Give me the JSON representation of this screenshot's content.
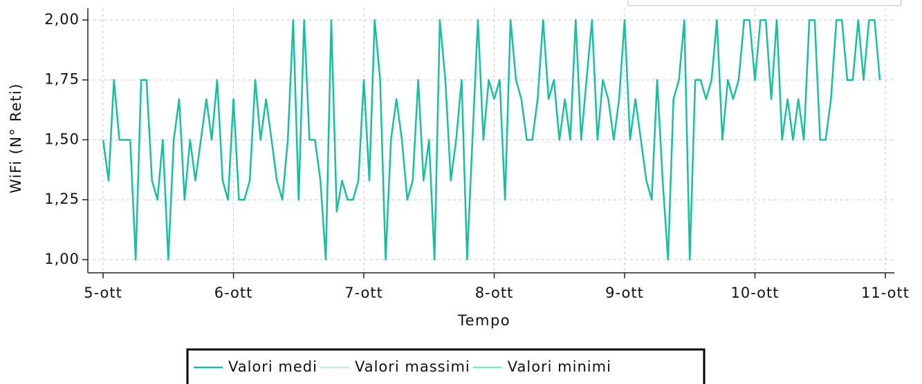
{
  "chart_data": {
    "type": "line",
    "x_label": "Tempo",
    "y_label": "WiFi (N° Reti)",
    "x": [
      5,
      5.042,
      5.083,
      5.125,
      5.167,
      5.208,
      5.25,
      5.292,
      5.333,
      5.375,
      5.417,
      5.458,
      5.5,
      5.542,
      5.583,
      5.625,
      5.667,
      5.708,
      5.75,
      5.792,
      5.833,
      5.875,
      5.917,
      5.958,
      6,
      6.042,
      6.083,
      6.125,
      6.167,
      6.208,
      6.25,
      6.292,
      6.333,
      6.375,
      6.417,
      6.458,
      6.5,
      6.542,
      6.583,
      6.625,
      6.667,
      6.708,
      6.75,
      6.792,
      6.833,
      6.875,
      6.917,
      6.958,
      7,
      7.042,
      7.083,
      7.125,
      7.167,
      7.208,
      7.25,
      7.292,
      7.333,
      7.375,
      7.417,
      7.458,
      7.5,
      7.542,
      7.583,
      7.625,
      7.667,
      7.708,
      7.75,
      7.792,
      7.833,
      7.875,
      7.917,
      7.958,
      8,
      8.042,
      8.083,
      8.125,
      8.167,
      8.208,
      8.25,
      8.292,
      8.333,
      8.375,
      8.417,
      8.458,
      8.5,
      8.542,
      8.583,
      8.625,
      8.667,
      8.708,
      8.75,
      8.792,
      8.833,
      8.875,
      8.917,
      8.958,
      9,
      9.042,
      9.083,
      9.125,
      9.167,
      9.208,
      9.25,
      9.292,
      9.333,
      9.375,
      9.417,
      9.458,
      9.5,
      9.542,
      9.583,
      9.625,
      9.667,
      9.708,
      9.75,
      9.792,
      9.833,
      9.875,
      9.917,
      9.958,
      10,
      10.042,
      10.083,
      10.125,
      10.167,
      10.208,
      10.25,
      10.292,
      10.333,
      10.375,
      10.417,
      10.458,
      10.5,
      10.542,
      10.583,
      10.625,
      10.667,
      10.708,
      10.75,
      10.792,
      10.833,
      10.875,
      10.917,
      10.958
    ],
    "series": [
      {
        "name": "Valori medi",
        "color": "#17bf9f",
        "values": [
          1.5,
          1.33,
          1.75,
          1.5,
          1.5,
          1.5,
          1.0,
          1.75,
          1.75,
          1.33,
          1.25,
          1.5,
          1.0,
          1.5,
          1.67,
          1.25,
          1.5,
          1.33,
          1.5,
          1.67,
          1.5,
          1.75,
          1.33,
          1.25,
          1.67,
          1.25,
          1.25,
          1.33,
          1.75,
          1.5,
          1.67,
          1.5,
          1.33,
          1.25,
          1.5,
          2.0,
          1.25,
          2.0,
          1.5,
          1.5,
          1.33,
          1.0,
          2.0,
          1.2,
          1.33,
          1.25,
          1.25,
          1.33,
          1.75,
          1.33,
          2.0,
          1.75,
          1.0,
          1.5,
          1.67,
          1.5,
          1.25,
          1.33,
          1.75,
          1.33,
          1.5,
          1.0,
          2.0,
          1.75,
          1.33,
          1.5,
          1.75,
          1.0,
          1.5,
          2.0,
          1.5,
          1.75,
          1.67,
          1.75,
          1.25,
          2.0,
          1.75,
          1.67,
          1.5,
          1.5,
          1.67,
          2.0,
          1.67,
          1.75,
          1.5,
          1.67,
          1.5,
          2.0,
          1.5,
          1.75,
          2.0,
          1.5,
          1.75,
          1.67,
          1.5,
          1.67,
          2.0,
          1.5,
          1.67,
          1.5,
          1.33,
          1.25,
          1.75,
          1.33,
          1.0,
          1.67,
          1.75,
          2.0,
          1.0,
          1.75,
          1.75,
          1.67,
          1.75,
          2.0,
          1.5,
          1.75,
          1.67,
          1.75,
          2.0,
          2.0,
          1.75,
          2.0,
          2.0,
          1.67,
          2.0,
          1.5,
          1.67,
          1.5,
          1.67,
          1.5,
          2.0,
          2.0,
          1.5,
          1.5,
          1.67,
          2.0,
          2.0,
          1.75,
          1.75,
          2.0,
          1.75,
          2.0,
          2.0,
          1.75
        ]
      },
      {
        "name": "Valori massimi",
        "color": "#c9efcf"
      },
      {
        "name": "Valori minimi",
        "color": "#7fe9c9"
      }
    ],
    "xlim": [
      4.883,
      11.069
    ],
    "xticks": [
      {
        "value": 5,
        "label": "5-ott"
      },
      {
        "value": 6,
        "label": "6-ott"
      },
      {
        "value": 7,
        "label": "7-ott"
      },
      {
        "value": 8,
        "label": "8-ott"
      },
      {
        "value": 9,
        "label": "9-ott"
      },
      {
        "value": 10,
        "label": "10-ott"
      },
      {
        "value": 11,
        "label": "11-ott"
      }
    ],
    "ylim": [
      0.945,
      2.049
    ],
    "yticks": [
      {
        "value": 1,
        "label": "1,00"
      },
      {
        "value": 1.25,
        "label": "1,25"
      },
      {
        "value": 1.5,
        "label": "1,50"
      },
      {
        "value": 1.75,
        "label": "1,75"
      },
      {
        "value": 2,
        "label": "2,00"
      }
    ],
    "grid": true,
    "legend": "bottom"
  }
}
